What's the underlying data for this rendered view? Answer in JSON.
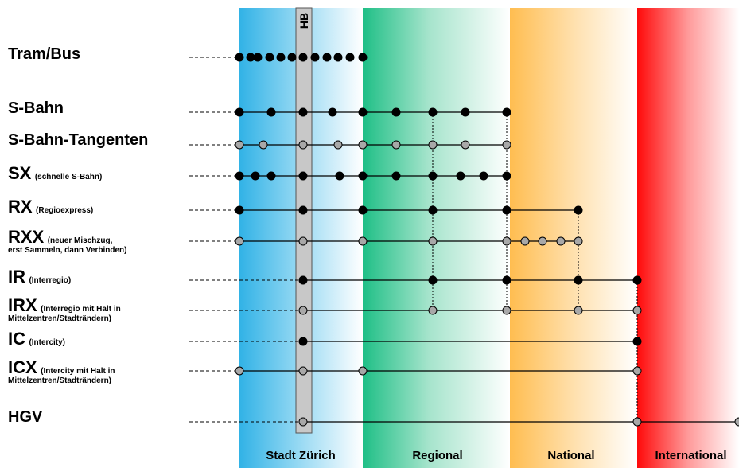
{
  "hub_label": "HB",
  "zones": [
    {
      "id": "stadt",
      "label": "Stadt Zürich",
      "color": "#33b5e8"
    },
    {
      "id": "regional",
      "label": "Regional",
      "color": "#22c08a"
    },
    {
      "id": "national",
      "label": "National",
      "color": "#ffbf55"
    },
    {
      "id": "international",
      "label": "International",
      "color": "#ff1010"
    }
  ],
  "rows": [
    {
      "id": "tram",
      "label": "Tram/Bus",
      "note": "",
      "note2": ""
    },
    {
      "id": "sbahn",
      "label": "S-Bahn",
      "note": "",
      "note2": ""
    },
    {
      "id": "tang",
      "label": "S-Bahn-Tangenten",
      "note": "",
      "note2": ""
    },
    {
      "id": "sx",
      "label": "SX",
      "note": "(schnelle S-Bahn)",
      "note2": ""
    },
    {
      "id": "rx",
      "label": "RX",
      "note": "(Regioexpress)",
      "note2": ""
    },
    {
      "id": "rxx",
      "label": "RXX",
      "note": "(neuer Mischzug,",
      "note2": "erst Sammeln, dann Verbinden)"
    },
    {
      "id": "ir",
      "label": "IR",
      "note": "(Interregio)",
      "note2": ""
    },
    {
      "id": "irx",
      "label": "IRX",
      "note": "(Interregio mit Halt in",
      "note2": "Mittelzentren/Stadträndern)"
    },
    {
      "id": "ic",
      "label": "IC",
      "note": "(Intercity)",
      "note2": ""
    },
    {
      "id": "icx",
      "label": "ICX",
      "note": "(Intercity mit Halt in",
      "note2": "Mittelzentren/Stadträndern)"
    },
    {
      "id": "hgv",
      "label": "HGV",
      "note": "",
      "note2": ""
    }
  ],
  "legend_colors": {
    "black_stop": "#000000",
    "grey_stop": "#a8a8a8",
    "hub_bar": "#c8c8c8"
  }
}
